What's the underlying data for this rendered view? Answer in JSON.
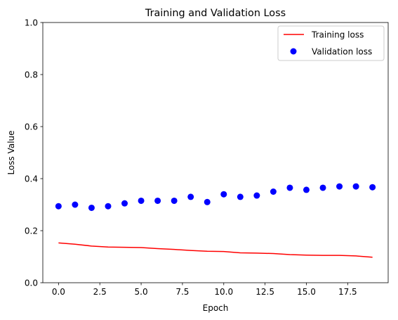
{
  "chart_data": {
    "type": "line",
    "title": "Training and Validation Loss",
    "xlabel": "Epoch",
    "ylabel": "Loss Value",
    "xlim": [
      -0.95,
      19.95
    ],
    "ylim": [
      0,
      1.0
    ],
    "xticks": [
      0.0,
      2.5,
      5.0,
      7.5,
      10.0,
      12.5,
      15.0,
      17.5
    ],
    "xtick_labels": [
      "0.0",
      "2.5",
      "5.0",
      "7.5",
      "10.0",
      "12.5",
      "15.0",
      "17.5"
    ],
    "yticks": [
      0.0,
      0.2,
      0.4,
      0.6,
      0.8,
      1.0
    ],
    "ytick_labels": [
      "0.0",
      "0.2",
      "0.4",
      "0.6",
      "0.8",
      "1.0"
    ],
    "grid": false,
    "legend_position": "top-right",
    "series": [
      {
        "name": "Training loss",
        "style": "line",
        "color": "#ff0000",
        "x": [
          0,
          1,
          2,
          3,
          4,
          5,
          6,
          7,
          8,
          9,
          10,
          11,
          12,
          13,
          14,
          15,
          16,
          17,
          18,
          19
        ],
        "y": [
          0.153,
          0.148,
          0.141,
          0.137,
          0.136,
          0.135,
          0.131,
          0.128,
          0.124,
          0.121,
          0.12,
          0.115,
          0.114,
          0.112,
          0.108,
          0.106,
          0.105,
          0.105,
          0.103,
          0.098
        ]
      },
      {
        "name": "Validation loss",
        "style": "scatter",
        "color": "#0000ff",
        "x": [
          0,
          1,
          2,
          3,
          4,
          5,
          6,
          7,
          8,
          9,
          10,
          11,
          12,
          13,
          14,
          15,
          16,
          17,
          18,
          19
        ],
        "y": [
          0.294,
          0.3,
          0.288,
          0.294,
          0.305,
          0.315,
          0.315,
          0.315,
          0.33,
          0.31,
          0.34,
          0.33,
          0.335,
          0.35,
          0.365,
          0.357,
          0.365,
          0.37,
          0.37,
          0.367
        ]
      }
    ]
  }
}
